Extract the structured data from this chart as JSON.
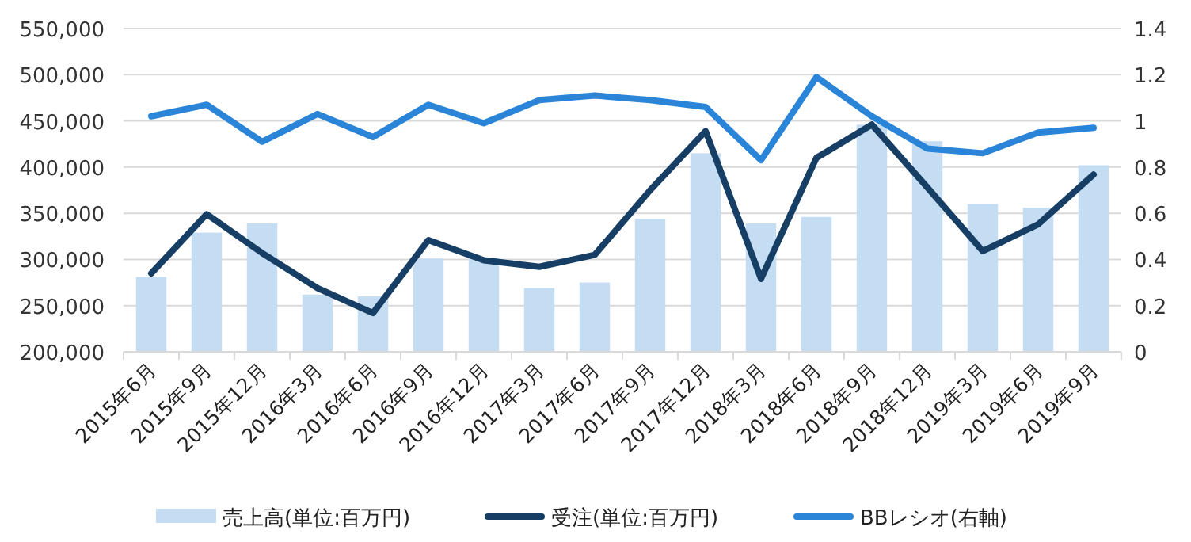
{
  "chart_data": {
    "type": "bar",
    "categories": [
      "2015年6月",
      "2015年9月",
      "2015年12月",
      "2016年3月",
      "2016年6月",
      "2016年9月",
      "2016年12月",
      "2017年3月",
      "2017年6月",
      "2017年9月",
      "2017年12月",
      "2018年3月",
      "2018年6月",
      "2018年9月",
      "2018年12月",
      "2019年3月",
      "2019年6月",
      "2019年9月"
    ],
    "series": [
      {
        "name": "売上高(単位:百万円)",
        "color": "#c5ddf2",
        "values": [
          281000,
          329000,
          339000,
          262000,
          260000,
          301000,
          302000,
          269000,
          275000,
          344000,
          415000,
          339000,
          346000,
          446000,
          428000,
          360000,
          356000,
          402000
        ]
      },
      {
        "name": "受注(単位:百万円)",
        "type": "line",
        "color": "#173f66",
        "values": [
          285000,
          349000,
          307000,
          269000,
          242000,
          321000,
          299000,
          292000,
          305000,
          375000,
          439000,
          279000,
          410000,
          446000,
          378000,
          309000,
          338000,
          392000
        ]
      },
      {
        "name": "BBレシオ(右軸)",
        "type": "line",
        "axis": "y2",
        "color": "#2a85d9",
        "values": [
          1.02,
          1.07,
          0.91,
          1.03,
          0.93,
          1.07,
          0.99,
          1.09,
          1.11,
          1.09,
          1.06,
          0.83,
          1.19,
          1.02,
          0.88,
          0.86,
          0.95,
          0.97
        ]
      }
    ],
    "ylim": [
      200000,
      550000
    ],
    "yticks": [
      {
        "value": 200000,
        "label": "200,000"
      },
      {
        "value": 250000,
        "label": "250,000"
      },
      {
        "value": 300000,
        "label": "300,000"
      },
      {
        "value": 350000,
        "label": "350,000"
      },
      {
        "value": 400000,
        "label": "400,000"
      },
      {
        "value": 450000,
        "label": "450,000"
      },
      {
        "value": 500000,
        "label": "500,000"
      },
      {
        "value": 550000,
        "label": "550,000"
      }
    ],
    "y2lim": [
      0,
      1.4
    ],
    "y2ticks": [
      0,
      0.2,
      0.4,
      0.6,
      0.8,
      1,
      1.2,
      1.4
    ],
    "grid": "y",
    "legend": "bottom",
    "marker": "none",
    "line_style": "solid"
  }
}
